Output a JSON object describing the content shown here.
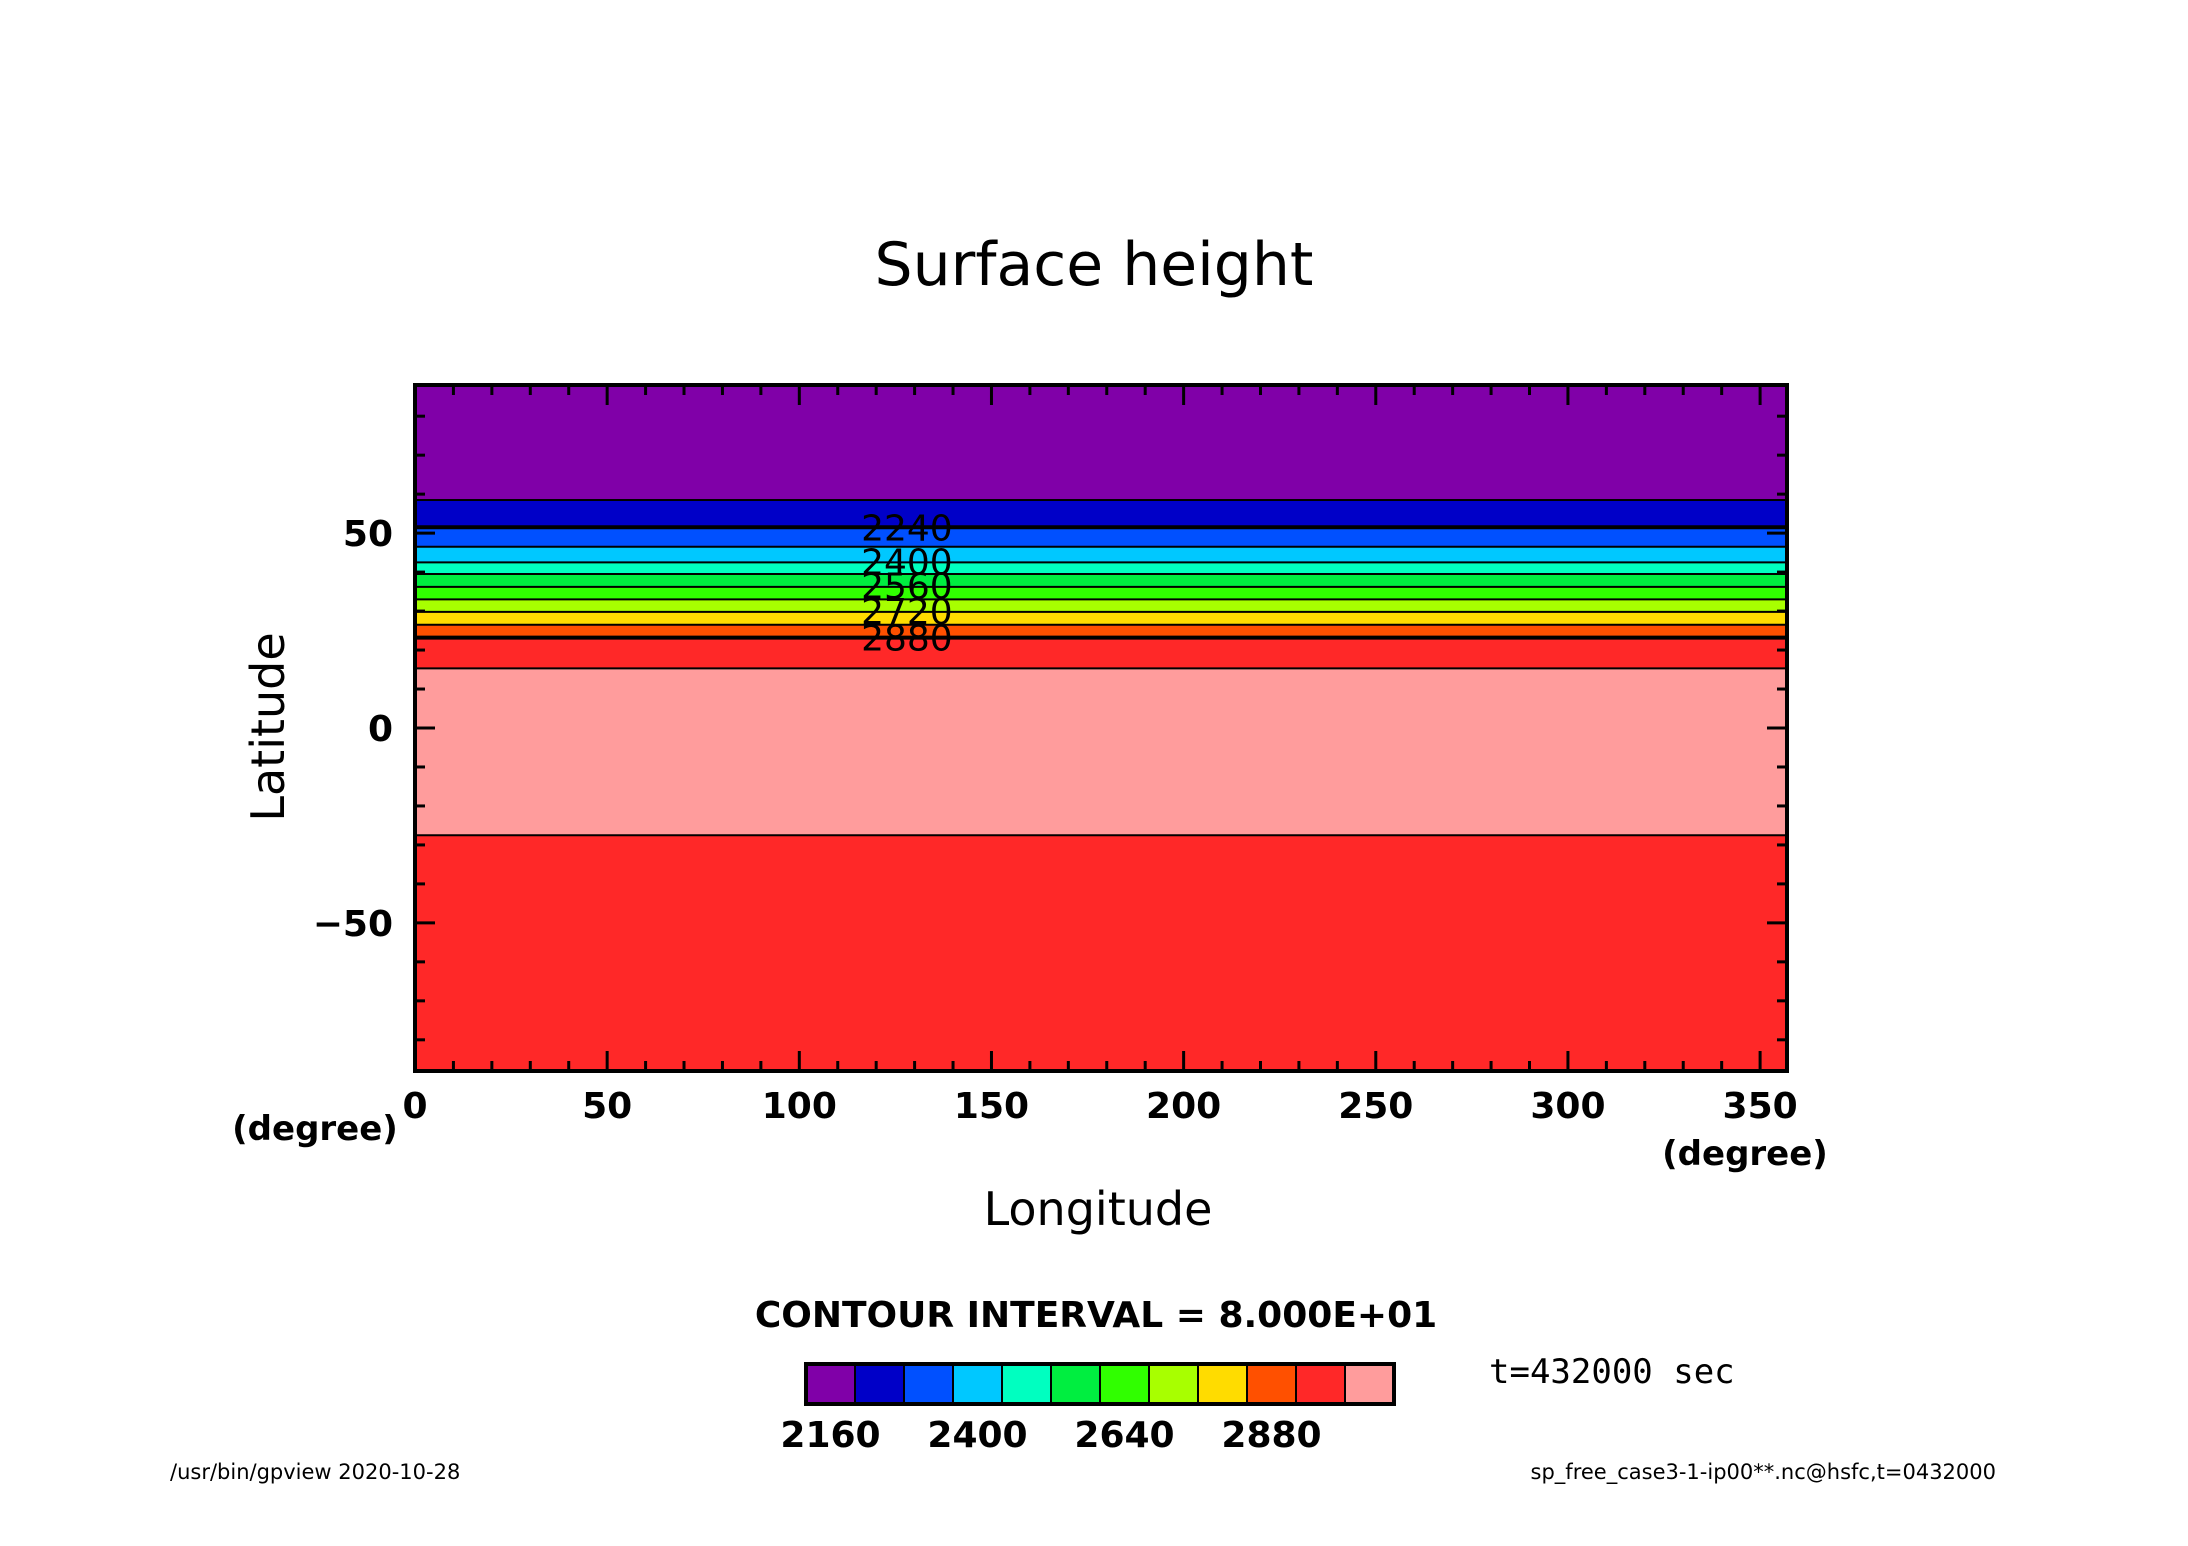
{
  "chart_data": {
    "type": "heatmap",
    "title": "Surface height",
    "xlabel": "Longitude",
    "ylabel": "Latitude",
    "x_unit": "(degree)",
    "y_unit": "(degree)",
    "xlim": [
      0,
      357
    ],
    "ylim": [
      -88,
      88
    ],
    "xticks": [
      0,
      50,
      100,
      150,
      200,
      250,
      300,
      350
    ],
    "yticks": [
      -50,
      0,
      50
    ],
    "x_minor_step": 10,
    "y_minor_step": 10,
    "grid": false,
    "contour_interval_label": "CONTOUR INTERVAL = 8.000E+01",
    "levels": [
      2160,
      2240,
      2320,
      2400,
      2480,
      2560,
      2640,
      2720,
      2800,
      2880,
      2960
    ],
    "colors": [
      "#8000a8",
      "#0000c8",
      "#0050ff",
      "#00c8ff",
      "#00ffc0",
      "#00ee40",
      "#30ff00",
      "#a8ff00",
      "#ffdc00",
      "#ff5000",
      "#ff2828",
      "#ff9c9c"
    ],
    "bands": [
      {
        "lat_from": 88,
        "lat_to": 58.5,
        "color_index": 0
      },
      {
        "lat_from": 58.5,
        "lat_to": 51.5,
        "color_index": 1
      },
      {
        "lat_from": 51.5,
        "lat_to": 46.5,
        "color_index": 2
      },
      {
        "lat_from": 46.5,
        "lat_to": 42.5,
        "color_index": 3
      },
      {
        "lat_from": 42.5,
        "lat_to": 39.5,
        "color_index": 4
      },
      {
        "lat_from": 39.5,
        "lat_to": 36.2,
        "color_index": 5
      },
      {
        "lat_from": 36.2,
        "lat_to": 33.0,
        "color_index": 6
      },
      {
        "lat_from": 33.0,
        "lat_to": 29.8,
        "color_index": 7
      },
      {
        "lat_from": 29.8,
        "lat_to": 26.5,
        "color_index": 8
      },
      {
        "lat_from": 26.5,
        "lat_to": 23.2,
        "color_index": 9
      },
      {
        "lat_from": 23.2,
        "lat_to": 15.3,
        "color_index": 10
      },
      {
        "lat_from": 15.3,
        "lat_to": -27.5,
        "color_index": 11
      },
      {
        "lat_from": -27.5,
        "lat_to": -88,
        "color_index": 10
      }
    ],
    "contour_lines": [
      58.5,
      51.5,
      46.5,
      42.5,
      39.5,
      36.2,
      33.0,
      29.8,
      26.5,
      23.2,
      15.3,
      -27.5
    ],
    "bold_contours": [
      51.5,
      23.2
    ],
    "contour_labels": [
      {
        "text": "2240",
        "lat": 51.5,
        "lon": 128
      },
      {
        "text": "2400",
        "lat": 42.7,
        "lon": 128
      },
      {
        "text": "2560",
        "lat": 36.5,
        "lon": 128
      },
      {
        "text": "2720",
        "lat": 30.0,
        "lon": 128
      },
      {
        "text": "2880",
        "lat": 23.2,
        "lon": 128
      }
    ],
    "colorbar_labels": [
      "2160",
      "2400",
      "2640",
      "2880"
    ],
    "time_label": "t=432000 sec"
  },
  "footer": {
    "left": "/usr/bin/gpview   2020-10-28",
    "right": "sp_free_case3-1-ip00**.nc@hsfc,t=0432000"
  }
}
